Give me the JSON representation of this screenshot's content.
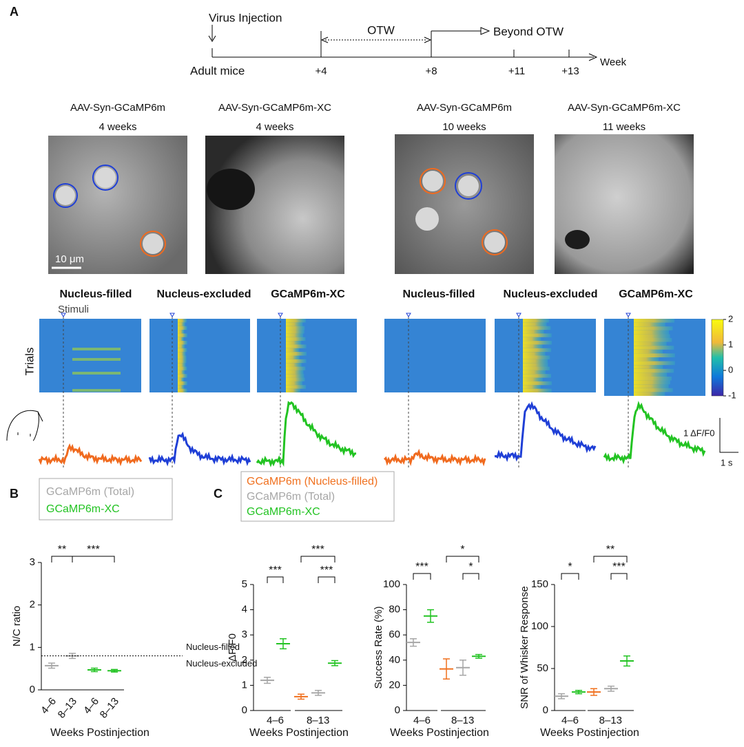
{
  "panel_labels": [
    "A",
    "B",
    "C"
  ],
  "timeline": {
    "injection": "Virus Injection",
    "window": "OTW",
    "beyond": "Beyond OTW",
    "start": "Adult mice",
    "ticks": [
      "+4",
      "+8",
      "+11",
      "+13"
    ],
    "unit": "Week"
  },
  "images": [
    {
      "construct": "AAV-Syn-GCaMP6m",
      "age": "4 weeks"
    },
    {
      "construct": "AAV-Syn-GCaMP6m-XC",
      "age": "4 weeks"
    },
    {
      "construct": "AAV-Syn-GCaMP6m",
      "age": "10 weeks"
    },
    {
      "construct": "AAV-Syn-GCaMP6m-XC",
      "age": "11 weeks"
    }
  ],
  "scale_bar": "10 μm",
  "heatmaps": {
    "stimuli": "Stimuli",
    "ylabel": "Trials",
    "titles": [
      "Nucleus-filled",
      "Nucleus-excluded",
      "GCaMP6m-XC",
      "Nucleus-filled",
      "Nucleus-excluded",
      "GCaMP6m-XC"
    ]
  },
  "colorbar": {
    "lim": [
      -1,
      2
    ],
    "ticks": [
      2,
      1,
      0,
      -1
    ]
  },
  "trace_scale": {
    "y": "1 ΔF/F0",
    "x": "1 s"
  },
  "chart_data": [
    {
      "type": "dot",
      "categories": [
        "4–6",
        "8–13",
        "4–6",
        "8–13"
      ],
      "ylim": [
        0,
        3
      ],
      "yticks": [
        0,
        1,
        2,
        3
      ],
      "ylabel": "N/C ratio",
      "xlabel": "Weeks Postinjection",
      "series": [
        {
          "name": "GCaMP6m (Total)",
          "color": "#a6a6a6",
          "values": [
            0.57,
            0.8,
            null,
            null
          ],
          "errors": [
            0.06,
            0.06,
            null,
            null
          ]
        },
        {
          "name": "GCaMP6m-XC",
          "color": "#22c322",
          "values": [
            null,
            null,
            0.47,
            0.45
          ],
          "errors": [
            null,
            null,
            0.04,
            0.03
          ]
        }
      ],
      "reference": {
        "value": 0.8,
        "labels": [
          "Nucleus-filled",
          "Nucleus-excluded"
        ]
      },
      "significance": [
        "**",
        "***"
      ]
    },
    {
      "type": "dot",
      "categories": [
        "4–6",
        "8–13"
      ],
      "ylim": [
        0,
        5
      ],
      "yticks": [
        0,
        1,
        2,
        3,
        4,
        5
      ],
      "ylabel": "ΔF/F0",
      "xlabel": "Weeks Postinjection",
      "series": [
        {
          "name": "GCaMP6m (Nucleus-filled)",
          "color": "#f0701e",
          "values": [
            null,
            0.55
          ],
          "errors": [
            null,
            0.1
          ]
        },
        {
          "name": "GCaMP6m (Total)",
          "color": "#a6a6a6",
          "values": [
            1.2,
            0.7
          ],
          "errors": [
            0.12,
            0.1
          ]
        },
        {
          "name": "GCaMP6m-XC",
          "color": "#22c322",
          "values": [
            2.65,
            1.88
          ],
          "errors": [
            0.2,
            0.1
          ]
        }
      ],
      "significance": [
        "***",
        "***",
        "***"
      ]
    },
    {
      "type": "dot",
      "categories": [
        "4–6",
        "8–13"
      ],
      "ylim": [
        0,
        100
      ],
      "yticks": [
        0,
        20,
        40,
        60,
        80,
        100
      ],
      "ylabel": "Success Rate (%)",
      "xlabel": "Weeks Postinjection",
      "series": [
        {
          "color": "#f0701e",
          "values": [
            null,
            33
          ],
          "errors": [
            null,
            8
          ]
        },
        {
          "color": "#a6a6a6",
          "values": [
            54,
            34
          ],
          "errors": [
            3,
            6
          ]
        },
        {
          "color": "#22c322",
          "values": [
            75,
            43
          ],
          "errors": [
            5,
            1.5
          ]
        }
      ],
      "significance": [
        "***",
        "*",
        "*"
      ]
    },
    {
      "type": "dot",
      "categories": [
        "4–6",
        "8–13"
      ],
      "ylim": [
        0,
        150
      ],
      "yticks": [
        0,
        50,
        100,
        150
      ],
      "ylabel": "SNR of Whisker Response",
      "xlabel": "Weeks Postinjection",
      "series": [
        {
          "color": "#f0701e",
          "values": [
            null,
            22
          ],
          "errors": [
            null,
            4
          ]
        },
        {
          "color": "#a6a6a6",
          "values": [
            17,
            26
          ],
          "errors": [
            3,
            3
          ]
        },
        {
          "color": "#22c322",
          "values": [
            22,
            59
          ],
          "errors": [
            2,
            6
          ]
        }
      ],
      "significance": [
        "*",
        "**",
        "***"
      ]
    }
  ]
}
